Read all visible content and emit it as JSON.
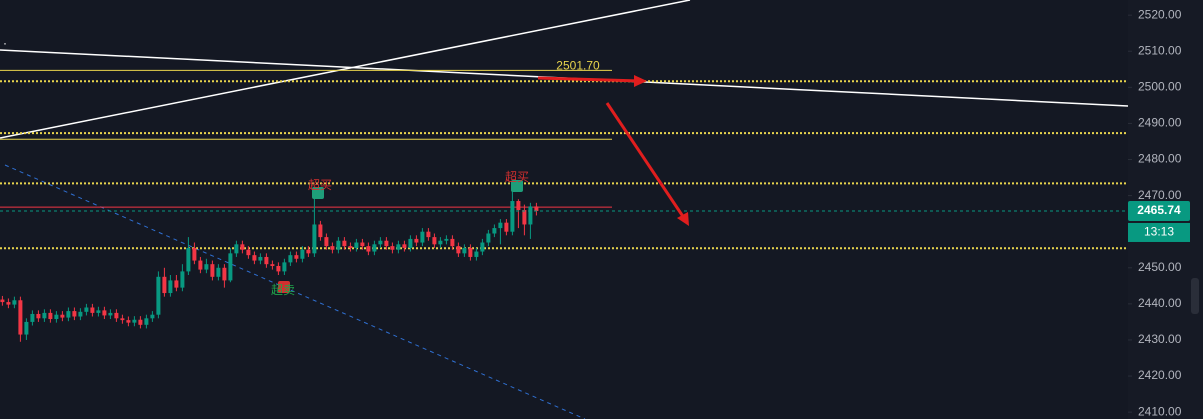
{
  "chart_data": {
    "type": "candlestick",
    "x": [
      0,
      1,
      2,
      3,
      4,
      5,
      6,
      7,
      8,
      9,
      10,
      11,
      12,
      13,
      14,
      15,
      16,
      17,
      18,
      19,
      20,
      21,
      22,
      23,
      24,
      25,
      26,
      27,
      28,
      29,
      30,
      31,
      32,
      33,
      34,
      35,
      36,
      37,
      38,
      39,
      40,
      41,
      42,
      43,
      44,
      45,
      46,
      47,
      48,
      49,
      50,
      51,
      52,
      53,
      54,
      55,
      56,
      57,
      58,
      59,
      60,
      61,
      62,
      63,
      64,
      65,
      66,
      67,
      68,
      69,
      70,
      71,
      72,
      73,
      74,
      75,
      76,
      77,
      78,
      79,
      80,
      81,
      82,
      83,
      84,
      85,
      86,
      87,
      88,
      89
    ],
    "open": [
      2441.2,
      2440.5,
      2439.8,
      2441.0,
      2431.5,
      2435.0,
      2437.2,
      2436.0,
      2437.5,
      2435.8,
      2437.0,
      2436.2,
      2438.0,
      2436.5,
      2437.8,
      2439.0,
      2437.5,
      2438.2,
      2436.8,
      2437.5,
      2436.0,
      2435.5,
      2434.8,
      2435.6,
      2434.2,
      2436.0,
      2437.0,
      2447.5,
      2443.0,
      2446.5,
      2444.5,
      2449.0,
      2455.5,
      2452.0,
      2449.5,
      2451.0,
      2447.5,
      2450.0,
      2446.5,
      2454.0,
      2456.5,
      2455.0,
      2453.5,
      2452.0,
      2453.0,
      2451.0,
      2450.5,
      2449.0,
      2451.5,
      2453.5,
      2452.5,
      2455.0,
      2454.0,
      2462.0,
      2458.5,
      2456.0,
      2455.0,
      2457.5,
      2456.0,
      2455.5,
      2457.0,
      2456.0,
      2454.5,
      2456.5,
      2457.5,
      2456.0,
      2455.0,
      2456.5,
      2455.5,
      2458.0,
      2457.0,
      2460.0,
      2458.5,
      2456.5,
      2457.5,
      2458.0,
      2456.0,
      2454.0,
      2455.5,
      2453.0,
      2454.5,
      2457.0,
      2459.5,
      2461.0,
      2462.5,
      2460.0,
      2468.5,
      2466.0,
      2462.0,
      2467.0
    ],
    "high": [
      2442.2,
      2441.5,
      2442.0,
      2442.0,
      2436.0,
      2438.2,
      2438.2,
      2438.5,
      2438.5,
      2438.0,
      2438.0,
      2439.0,
      2439.0,
      2438.8,
      2440.0,
      2440.0,
      2439.2,
      2439.2,
      2438.5,
      2438.5,
      2437.0,
      2436.5,
      2436.6,
      2436.6,
      2437.0,
      2438.0,
      2449.0,
      2450.0,
      2448.0,
      2448.0,
      2451.0,
      2458.5,
      2457.0,
      2453.0,
      2452.5,
      2452.0,
      2451.0,
      2451.0,
      2455.5,
      2457.5,
      2457.5,
      2456.0,
      2454.5,
      2454.0,
      2454.0,
      2452.0,
      2451.5,
      2452.5,
      2454.5,
      2454.5,
      2456.0,
      2456.0,
      2469.5,
      2463.0,
      2459.5,
      2457.0,
      2458.5,
      2458.5,
      2457.0,
      2458.0,
      2458.0,
      2457.0,
      2457.5,
      2458.5,
      2458.5,
      2457.0,
      2457.5,
      2457.5,
      2459.0,
      2459.0,
      2461.0,
      2461.0,
      2459.5,
      2458.5,
      2459.0,
      2459.0,
      2457.0,
      2456.5,
      2456.5,
      2455.5,
      2458.0,
      2460.5,
      2462.0,
      2463.5,
      2463.5,
      2471.5,
      2469.0,
      2467.5,
      2468.0,
      2468.0
    ],
    "low": [
      2439.5,
      2438.8,
      2438.8,
      2429.5,
      2430.0,
      2434.0,
      2435.0,
      2435.0,
      2434.8,
      2434.8,
      2435.2,
      2435.2,
      2435.5,
      2435.5,
      2436.8,
      2436.5,
      2436.5,
      2435.8,
      2435.8,
      2435.0,
      2434.5,
      2433.8,
      2433.8,
      2433.2,
      2433.2,
      2435.0,
      2436.0,
      2442.0,
      2442.0,
      2443.5,
      2443.5,
      2448.0,
      2451.0,
      2448.5,
      2448.5,
      2446.5,
      2446.5,
      2444.5,
      2446.0,
      2453.0,
      2454.0,
      2452.5,
      2451.0,
      2451.0,
      2450.0,
      2449.5,
      2448.0,
      2448.0,
      2450.5,
      2451.5,
      2451.5,
      2453.0,
      2453.0,
      2457.5,
      2455.0,
      2454.0,
      2454.0,
      2455.0,
      2454.5,
      2454.5,
      2455.0,
      2453.5,
      2453.5,
      2455.5,
      2455.0,
      2454.0,
      2454.0,
      2454.5,
      2454.5,
      2456.0,
      2456.0,
      2457.5,
      2455.5,
      2455.5,
      2456.5,
      2455.0,
      2453.0,
      2453.0,
      2452.0,
      2452.0,
      2453.5,
      2456.0,
      2458.5,
      2456.5,
      2459.0,
      2459.0,
      2461.0,
      2459.0,
      2458.0,
      2464.5
    ],
    "close": [
      2440.5,
      2439.8,
      2441.0,
      2431.5,
      2435.0,
      2437.2,
      2436.0,
      2437.5,
      2435.8,
      2437.0,
      2436.2,
      2438.0,
      2436.5,
      2437.8,
      2439.0,
      2437.5,
      2438.2,
      2436.8,
      2437.5,
      2436.0,
      2435.5,
      2434.8,
      2435.6,
      2434.2,
      2436.0,
      2437.0,
      2447.5,
      2443.0,
      2446.5,
      2444.5,
      2449.0,
      2455.5,
      2452.0,
      2449.5,
      2451.0,
      2447.5,
      2450.0,
      2446.5,
      2454.0,
      2456.5,
      2455.0,
      2453.5,
      2452.0,
      2453.0,
      2451.0,
      2450.5,
      2449.0,
      2451.5,
      2453.5,
      2452.5,
      2455.0,
      2454.0,
      2462.0,
      2458.5,
      2456.0,
      2455.0,
      2457.5,
      2456.0,
      2455.5,
      2457.0,
      2456.0,
      2454.5,
      2456.5,
      2457.5,
      2456.0,
      2455.0,
      2456.5,
      2455.5,
      2458.0,
      2457.0,
      2460.0,
      2458.5,
      2456.5,
      2457.5,
      2458.0,
      2456.0,
      2454.0,
      2455.5,
      2453.0,
      2454.5,
      2457.0,
      2459.5,
      2461.0,
      2462.5,
      2460.0,
      2468.5,
      2466.0,
      2462.0,
      2467.0,
      2465.74
    ],
    "up_color": "#089981",
    "down_color": "#f23645",
    "xlim": [
      -0.4,
      187.6
    ],
    "ylim": [
      2408.1,
      2524.2
    ],
    "yticks": [
      {
        "value": 2410,
        "label": "2410.00"
      },
      {
        "value": 2420,
        "label": "2420.00"
      },
      {
        "value": 2430,
        "label": "2430.00"
      },
      {
        "value": 2440,
        "label": "2440.00"
      },
      {
        "value": 2450,
        "label": "2450.00"
      },
      {
        "value": 2460,
        "label": "2460.00"
      },
      {
        "value": 2470,
        "label": "2470.00"
      },
      {
        "value": 2480,
        "label": "2480.00"
      },
      {
        "value": 2490,
        "label": "2490.00"
      },
      {
        "value": 2500,
        "label": "2500.00"
      },
      {
        "value": 2510,
        "label": "2510.00"
      },
      {
        "value": 2520,
        "label": "2520.00"
      }
    ],
    "levels": [
      {
        "value": 2501.7,
        "label": "2501.70",
        "color": "#e8d44d",
        "style": "dotted"
      },
      {
        "value": 2487.3,
        "color": "#e8d44d",
        "style": "dotted"
      },
      {
        "value": 2473.4,
        "color": "#e8d44d",
        "style": "dotted"
      },
      {
        "value": 2455.4,
        "color": "#e8d44d",
        "style": "dotted"
      },
      {
        "value": 2504.7,
        "color": "#e8d44d",
        "style": "solid"
      },
      {
        "value": 2485.6,
        "color": "#e8d44d",
        "style": "solid"
      },
      {
        "value": 2466.8,
        "color": "#f23645",
        "style": "solid"
      }
    ],
    "last_price": 2465.74,
    "countdown": "13:13",
    "annotations": [
      "超买",
      "超买",
      "超卖"
    ]
  }
}
